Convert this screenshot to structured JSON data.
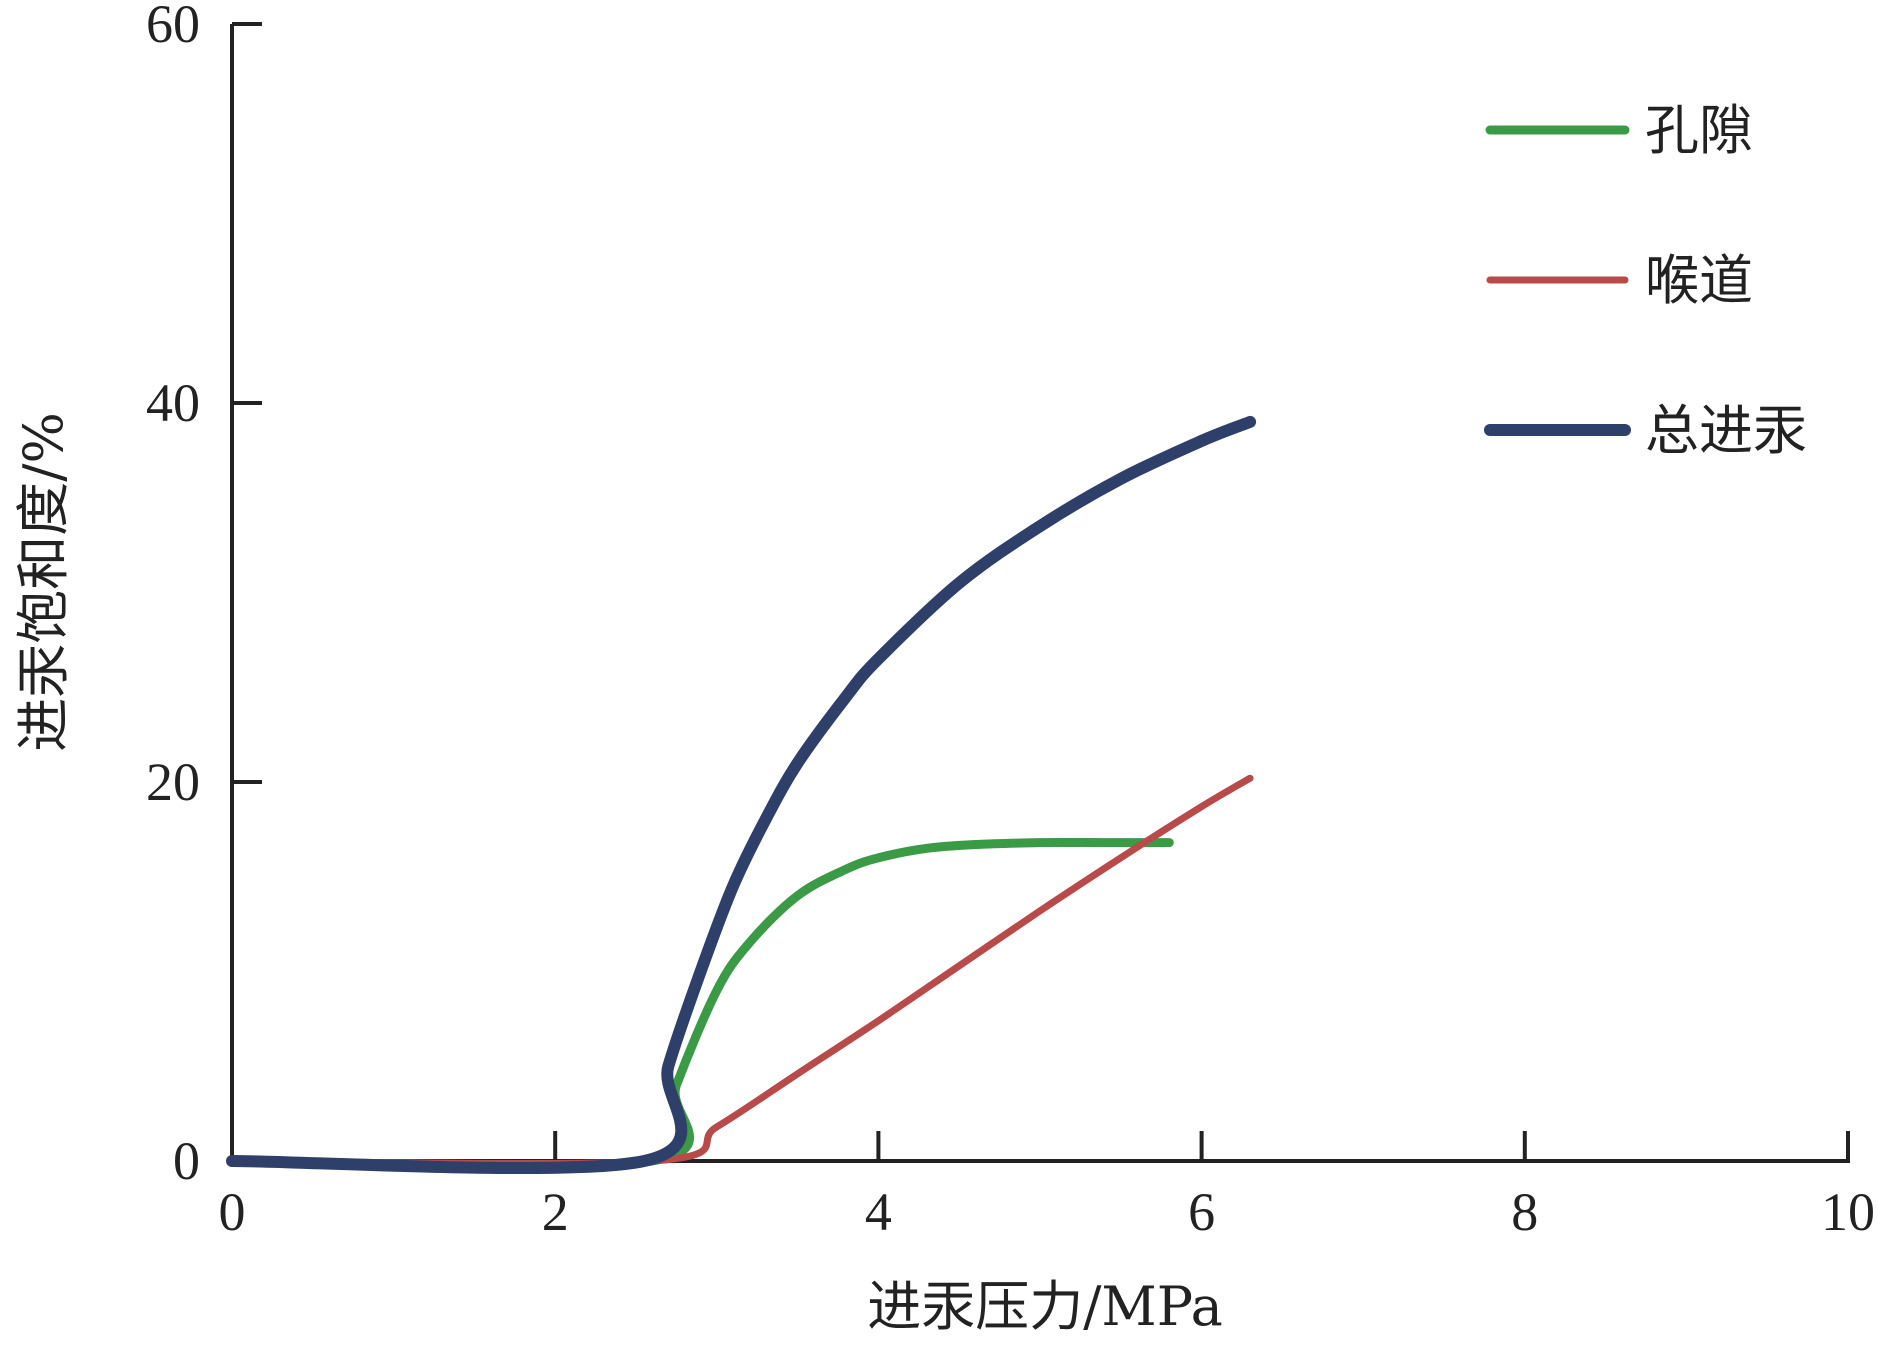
{
  "chart_data": {
    "type": "line",
    "xlabel": "进汞压力/MPa",
    "ylabel": "进汞饱和度/%",
    "xlim": [
      0,
      10
    ],
    "ylim": [
      0,
      60
    ],
    "xticks": [
      "0",
      "2",
      "4",
      "6",
      "8",
      "10"
    ],
    "yticks": [
      "0",
      "20",
      "40",
      "60"
    ],
    "grid": false,
    "legend_position": "top-right",
    "series": [
      {
        "name": "孔隙",
        "color": "#3a9a45",
        "x": [
          0,
          2.6,
          2.75,
          3.0,
          3.2,
          3.5,
          3.8,
          4.0,
          4.3,
          4.6,
          5.0,
          5.4,
          5.8
        ],
        "y": [
          0,
          0,
          4.0,
          9.0,
          11.5,
          14.0,
          15.4,
          16.0,
          16.5,
          16.7,
          16.8,
          16.8,
          16.8
        ]
      },
      {
        "name": "喉道",
        "color": "#b84a4a",
        "x": [
          0,
          2.6,
          3.0,
          3.5,
          4.0,
          4.5,
          5.0,
          5.5,
          6.0,
          6.3
        ],
        "y": [
          0,
          0,
          1.8,
          4.6,
          7.4,
          10.3,
          13.2,
          16.0,
          18.7,
          20.2
        ]
      },
      {
        "name": "总进汞",
        "color": "#2e3f6a",
        "x": [
          0,
          2.55,
          2.7,
          2.9,
          3.1,
          3.3,
          3.5,
          3.8,
          4.0,
          4.5,
          5.0,
          5.5,
          6.0,
          6.3
        ],
        "y": [
          0,
          0,
          5.0,
          10.0,
          14.5,
          18.0,
          21.0,
          24.5,
          26.5,
          30.5,
          33.5,
          36.0,
          38.0,
          39.0
        ]
      }
    ]
  }
}
